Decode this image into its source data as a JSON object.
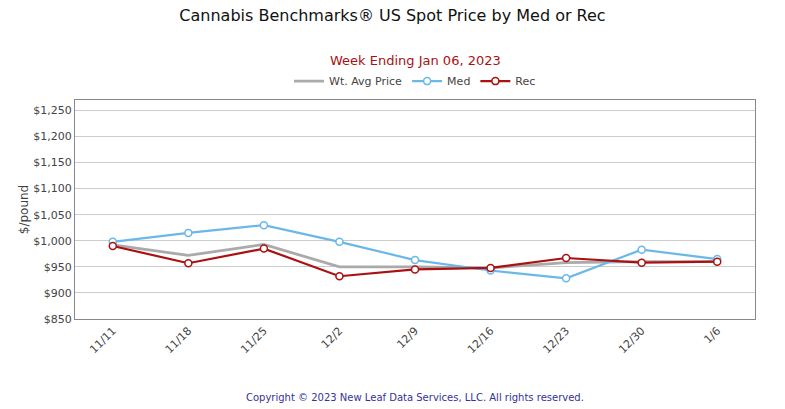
{
  "chart_data": {
    "type": "line",
    "title": "Cannabis Benchmarks® US Spot Price by Med or Rec",
    "subtitle": "Week Ending Jan 06, 2023",
    "ylabel": "$/pound",
    "annotations": [
      "Copyright © 2023 New Leaf Data Services, LLC. All rights reserved."
    ],
    "categories": [
      "11/11",
      "11/18",
      "11/25",
      "12/2",
      "12/9",
      "12/16",
      "12/23",
      "12/30",
      "1/6"
    ],
    "series": [
      {
        "name": "Med",
        "color": "#6bb8e8",
        "marker": "circle",
        "values": [
          998,
          1015,
          1030,
          998,
          963,
          943,
          928,
          983,
          965
        ]
      },
      {
        "name": "Rec",
        "color": "#aa1111",
        "marker": "circle",
        "values": [
          990,
          957,
          985,
          932,
          945,
          948,
          967,
          958,
          960
        ]
      },
      {
        "name": "Wt. Avg Price",
        "color": "#aaaaaa",
        "marker": "none",
        "values": [
          992,
          972,
          993,
          950,
          950,
          948,
          958,
          960,
          960
        ]
      }
    ],
    "ylim": [
      850,
      1270
    ],
    "yticks": [
      {
        "value": 850,
        "label": "$850"
      },
      {
        "value": 900,
        "label": "$900"
      },
      {
        "value": 950,
        "label": "$950"
      },
      {
        "value": 1000,
        "label": "$1,000"
      },
      {
        "value": 1050,
        "label": "$1,050"
      },
      {
        "value": 1100,
        "label": "$1,100"
      },
      {
        "value": 1150,
        "label": "$1,150"
      },
      {
        "value": 1200,
        "label": "$1,200"
      },
      {
        "value": 1250,
        "label": "$1,250"
      }
    ],
    "grid": true,
    "legend": "top"
  }
}
